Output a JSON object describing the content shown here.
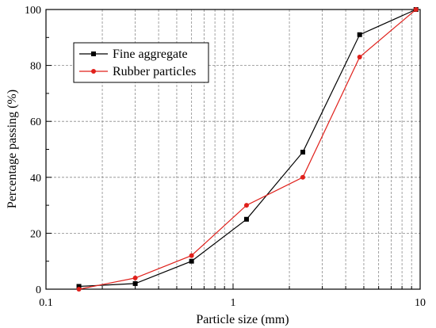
{
  "chart_data": {
    "type": "line",
    "xlabel": "Particle size (mm)",
    "ylabel": "Percentage passing (%)",
    "xscale": "log",
    "xlim": [
      0.1,
      10
    ],
    "ylim": [
      0,
      100
    ],
    "x_ticks": [
      {
        "value": 0.1,
        "label": "0.1"
      },
      {
        "value": 1,
        "label": "1"
      },
      {
        "value": 10,
        "label": "10"
      }
    ],
    "y_ticks": [
      {
        "value": 0,
        "label": "0"
      },
      {
        "value": 20,
        "label": "20"
      },
      {
        "value": 40,
        "label": "40"
      },
      {
        "value": 60,
        "label": "60"
      },
      {
        "value": 80,
        "label": "80"
      },
      {
        "value": 100,
        "label": "100"
      }
    ],
    "grid": true,
    "grid_style": "dashed",
    "legend_position": "top-left",
    "series": [
      {
        "name": "Fine aggregate",
        "color": "#000000",
        "marker": "square",
        "x": [
          0.15,
          0.3,
          0.6,
          1.18,
          2.36,
          4.75,
          9.5
        ],
        "y": [
          1,
          2,
          10,
          25,
          49,
          91,
          100
        ]
      },
      {
        "name": "Rubber particles",
        "color": "#e0201b",
        "marker": "circle",
        "x": [
          0.15,
          0.3,
          0.6,
          1.18,
          2.36,
          4.75,
          9.5
        ],
        "y": [
          0,
          4,
          12,
          30,
          40,
          83,
          100
        ]
      }
    ]
  }
}
